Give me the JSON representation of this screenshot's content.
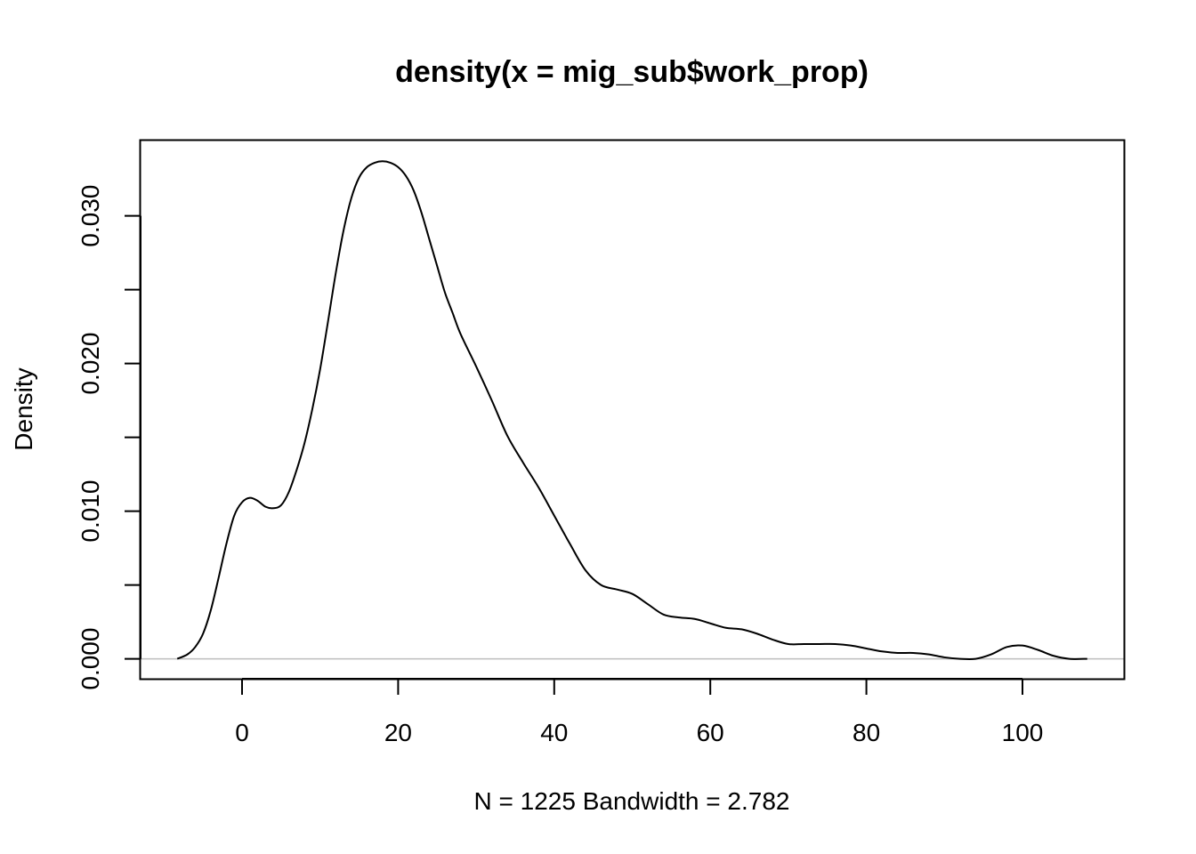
{
  "chart_data": {
    "type": "line",
    "title": "density(x = mig_sub$work_prop)",
    "xlabel": "N = 1225   Bandwidth = 2.782",
    "ylabel": "Density",
    "xlim": [
      -13,
      113
    ],
    "ylim": [
      -0.00135,
      0.0351
    ],
    "x_ticks": [
      0,
      20,
      40,
      60,
      80,
      100
    ],
    "x_tick_labels": [
      "0",
      "20",
      "40",
      "60",
      "80",
      "100"
    ],
    "y_ticks": [
      0.0,
      0.005,
      0.01,
      0.015,
      0.02,
      0.025,
      0.03
    ],
    "y_tick_labels": [
      "0.000",
      "",
      "0.010",
      "",
      "0.020",
      "",
      "0.030"
    ],
    "baseline_color": "#bebebe",
    "line_color": "#000000",
    "grid": false,
    "series": [
      {
        "x": [
          -8.3,
          -7,
          -6,
          -5,
          -4,
          -3,
          -2,
          -1,
          0,
          1,
          2,
          3,
          4,
          5,
          6,
          7,
          8,
          9,
          10,
          11,
          12,
          13,
          14,
          15,
          16,
          17,
          18,
          19,
          20,
          21,
          22,
          23,
          24,
          25,
          26,
          27,
          28,
          30,
          32,
          34,
          36,
          38,
          40,
          42,
          44,
          46,
          48,
          50,
          52,
          54,
          56,
          58,
          60,
          62,
          64,
          66,
          68,
          70,
          72,
          74,
          76,
          78,
          80,
          82,
          84,
          86,
          88,
          90,
          92,
          94,
          96,
          98,
          100,
          102,
          104,
          106,
          108.3
        ],
        "y": [
          0.0,
          0.0003,
          0.0008,
          0.0017,
          0.0033,
          0.0055,
          0.0078,
          0.0097,
          0.0106,
          0.0109,
          0.0107,
          0.0103,
          0.0102,
          0.0104,
          0.0113,
          0.0128,
          0.0146,
          0.0169,
          0.0196,
          0.0228,
          0.0261,
          0.029,
          0.0312,
          0.0326,
          0.0333,
          0.0336,
          0.0337,
          0.0336,
          0.0333,
          0.0327,
          0.0317,
          0.0302,
          0.0284,
          0.0266,
          0.0248,
          0.0234,
          0.022,
          0.0198,
          0.0175,
          0.0151,
          0.0133,
          0.0116,
          0.0097,
          0.0078,
          0.006,
          0.005,
          0.0047,
          0.0044,
          0.0037,
          0.003,
          0.0028,
          0.0027,
          0.0024,
          0.0021,
          0.002,
          0.0017,
          0.0013,
          0.001,
          0.001,
          0.001,
          0.001,
          0.0009,
          0.0007,
          0.0005,
          0.0004,
          0.0004,
          0.0003,
          0.0001,
          0.0,
          0.0,
          0.0003,
          0.0008,
          0.0009,
          0.0006,
          0.0002,
          0.0,
          0.0
        ]
      }
    ]
  }
}
